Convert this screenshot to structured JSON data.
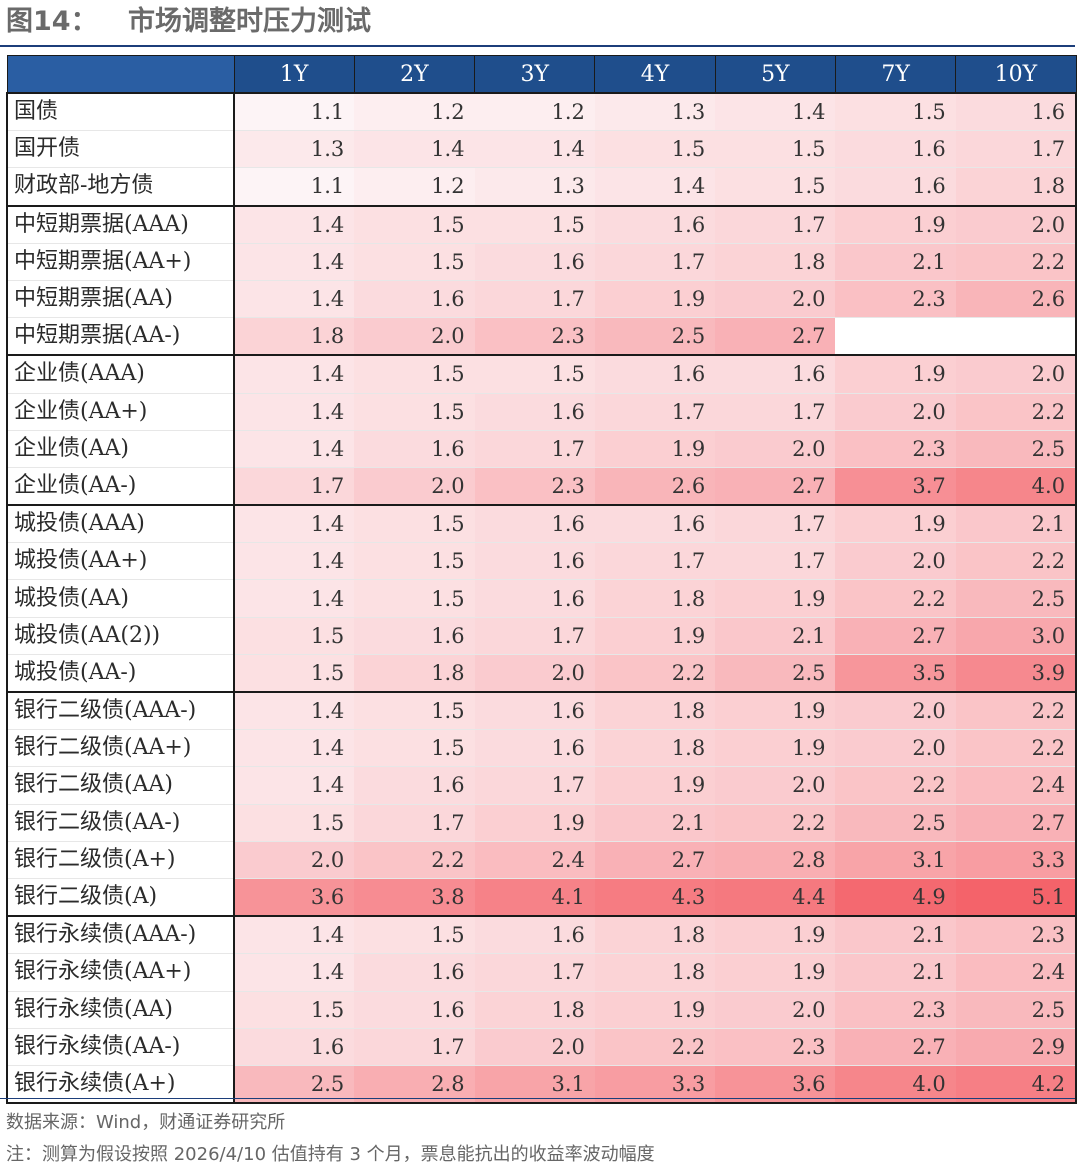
{
  "figure": {
    "number": "图14：",
    "title": "市场调整时压力测试",
    "source": "数据来源：Wind，财通证券研究所",
    "note": "注：测算为假设按照 2026/4/10 估值持有 3 个月，票息能抗出的收益率波动幅度"
  },
  "colors": {
    "header_bg": "#1f4e8c",
    "header_text": "#ffffff",
    "heat_low": "#fdf4f6",
    "heat_high": "#f4636a",
    "border": "#1a1a1a"
  },
  "chart_data": {
    "type": "table",
    "value_range": [
      1.1,
      5.1
    ],
    "columns": [
      "1Y",
      "2Y",
      "3Y",
      "4Y",
      "5Y",
      "7Y",
      "10Y"
    ],
    "groups": [
      {
        "rows": [
          {
            "label": "国债",
            "values": [
              1.1,
              1.2,
              1.2,
              1.3,
              1.4,
              1.5,
              1.6
            ]
          },
          {
            "label": "国开债",
            "values": [
              1.3,
              1.4,
              1.4,
              1.5,
              1.5,
              1.6,
              1.7
            ]
          },
          {
            "label": "财政部-地方债",
            "values": [
              1.1,
              1.2,
              1.3,
              1.4,
              1.5,
              1.6,
              1.8
            ]
          }
        ]
      },
      {
        "rows": [
          {
            "label": "中短期票据(AAA)",
            "values": [
              1.4,
              1.5,
              1.5,
              1.6,
              1.7,
              1.9,
              2.0
            ]
          },
          {
            "label": "中短期票据(AA+)",
            "values": [
              1.4,
              1.5,
              1.6,
              1.7,
              1.8,
              2.1,
              2.2
            ]
          },
          {
            "label": "中短期票据(AA)",
            "values": [
              1.4,
              1.6,
              1.7,
              1.9,
              2.0,
              2.3,
              2.6
            ]
          },
          {
            "label": "中短期票据(AA-)",
            "values": [
              1.8,
              2.0,
              2.3,
              2.5,
              2.7,
              null,
              null
            ]
          }
        ]
      },
      {
        "rows": [
          {
            "label": "企业债(AAA)",
            "values": [
              1.4,
              1.5,
              1.5,
              1.6,
              1.6,
              1.9,
              2.0
            ]
          },
          {
            "label": "企业债(AA+)",
            "values": [
              1.4,
              1.5,
              1.6,
              1.7,
              1.7,
              2.0,
              2.2
            ]
          },
          {
            "label": "企业债(AA)",
            "values": [
              1.4,
              1.6,
              1.7,
              1.9,
              2.0,
              2.3,
              2.5
            ]
          },
          {
            "label": "企业债(AA-)",
            "values": [
              1.7,
              2.0,
              2.3,
              2.6,
              2.7,
              3.7,
              4.0
            ]
          }
        ]
      },
      {
        "rows": [
          {
            "label": "城投债(AAA)",
            "values": [
              1.4,
              1.5,
              1.6,
              1.6,
              1.7,
              1.9,
              2.1
            ]
          },
          {
            "label": "城投债(AA+)",
            "values": [
              1.4,
              1.5,
              1.6,
              1.7,
              1.7,
              2.0,
              2.2
            ]
          },
          {
            "label": "城投债(AA)",
            "values": [
              1.4,
              1.5,
              1.6,
              1.8,
              1.9,
              2.2,
              2.5
            ]
          },
          {
            "label": "城投债(AA(2))",
            "values": [
              1.5,
              1.6,
              1.7,
              1.9,
              2.1,
              2.7,
              3.0
            ]
          },
          {
            "label": "城投债(AA-)",
            "values": [
              1.5,
              1.8,
              2.0,
              2.2,
              2.5,
              3.5,
              3.9
            ]
          }
        ]
      },
      {
        "rows": [
          {
            "label": "银行二级债(AAA-)",
            "values": [
              1.4,
              1.5,
              1.6,
              1.8,
              1.9,
              2.0,
              2.2
            ]
          },
          {
            "label": "银行二级债(AA+)",
            "values": [
              1.4,
              1.5,
              1.6,
              1.8,
              1.9,
              2.0,
              2.2
            ]
          },
          {
            "label": "银行二级债(AA)",
            "values": [
              1.4,
              1.6,
              1.7,
              1.9,
              2.0,
              2.2,
              2.4
            ]
          },
          {
            "label": "银行二级债(AA-)",
            "values": [
              1.5,
              1.7,
              1.9,
              2.1,
              2.2,
              2.5,
              2.7
            ]
          },
          {
            "label": "银行二级债(A+)",
            "values": [
              2.0,
              2.2,
              2.4,
              2.7,
              2.8,
              3.1,
              3.3
            ]
          },
          {
            "label": "银行二级债(A)",
            "values": [
              3.6,
              3.8,
              4.1,
              4.3,
              4.4,
              4.9,
              5.1
            ]
          }
        ]
      },
      {
        "rows": [
          {
            "label": "银行永续债(AAA-)",
            "values": [
              1.4,
              1.5,
              1.6,
              1.8,
              1.9,
              2.1,
              2.3
            ]
          },
          {
            "label": "银行永续债(AA+)",
            "values": [
              1.4,
              1.6,
              1.7,
              1.8,
              1.9,
              2.1,
              2.4
            ]
          },
          {
            "label": "银行永续债(AA)",
            "values": [
              1.5,
              1.6,
              1.8,
              1.9,
              2.0,
              2.3,
              2.5
            ]
          },
          {
            "label": "银行永续债(AA-)",
            "values": [
              1.6,
              1.7,
              2.0,
              2.2,
              2.3,
              2.7,
              2.9
            ]
          },
          {
            "label": "银行永续债(A+)",
            "values": [
              2.5,
              2.8,
              3.1,
              3.3,
              3.6,
              4.0,
              4.2
            ]
          }
        ]
      }
    ]
  }
}
